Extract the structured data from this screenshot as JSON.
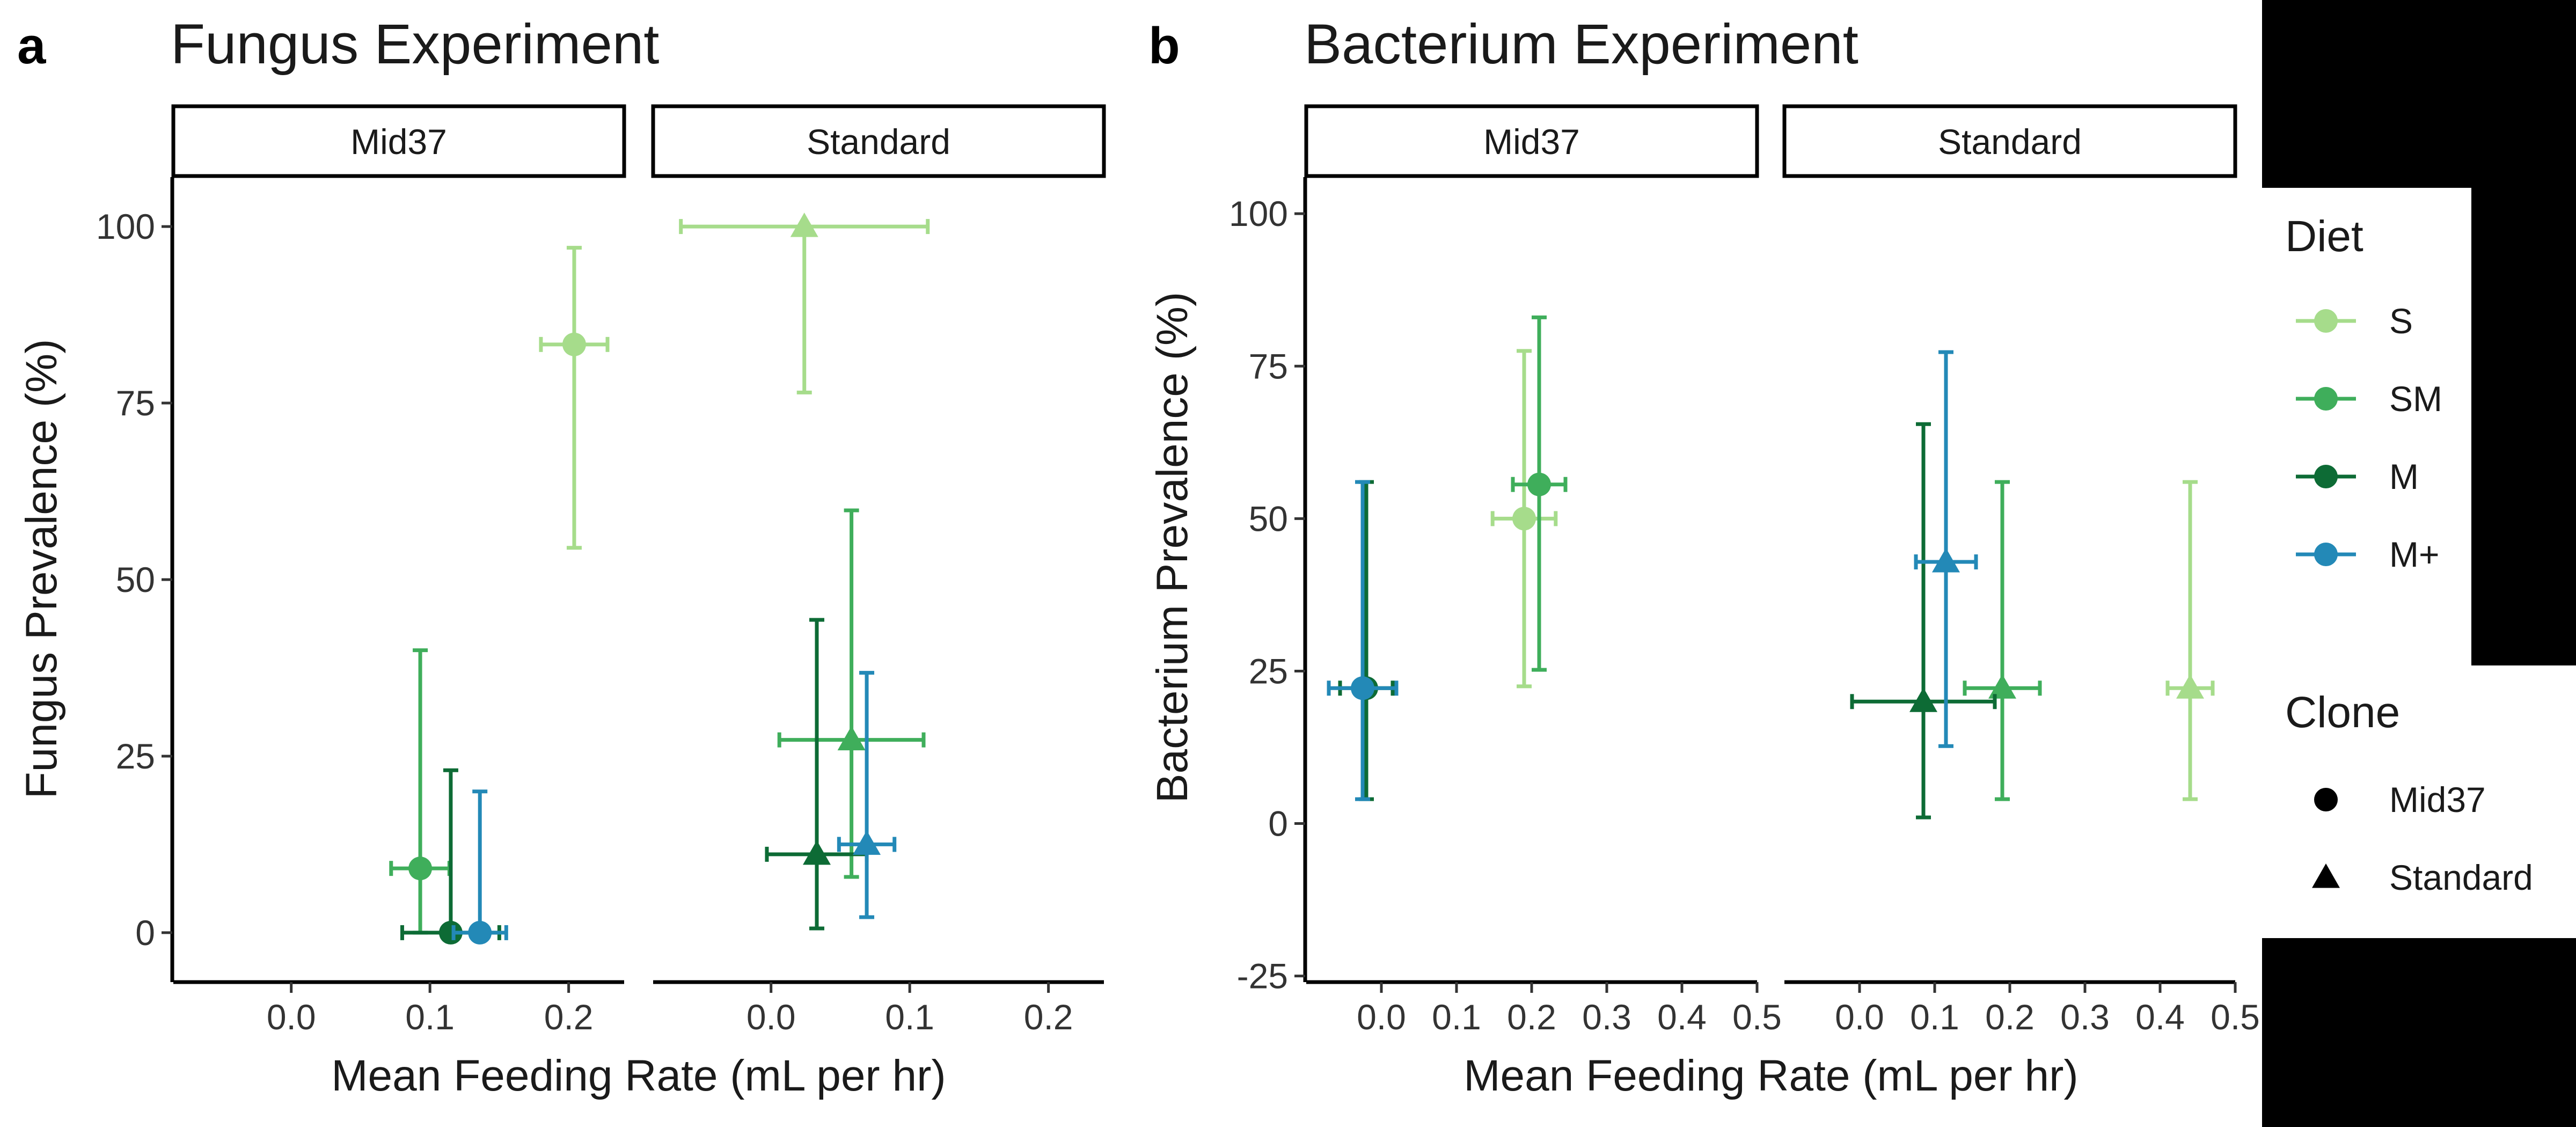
{
  "colors": {
    "S": "#a6dc8b",
    "SM": "#3fae5b",
    "M": "#0d6b35",
    "M+": "#2389b7",
    "black_block": "#000000"
  },
  "panel_a": {
    "letter": "a",
    "title": "Fungus Experiment",
    "strips": [
      "Mid37",
      "Standard"
    ],
    "ylabel": "Fungus Prevalence (%)",
    "xlabel": "Mean Feeding Rate (mL per hr)",
    "yticks": [
      "0",
      "25",
      "50",
      "75",
      "100"
    ],
    "xticks": [
      "0.0",
      "0.1",
      "0.2"
    ]
  },
  "panel_b": {
    "letter": "b",
    "title": "Bacterium Experiment",
    "strips": [
      "Mid37",
      "Standard"
    ],
    "ylabel": "Bacterium Prevalence (%)",
    "xlabel": "Mean Feeding Rate (mL per hr)",
    "yticks": [
      "-25",
      "0",
      "25",
      "50",
      "75",
      "100"
    ],
    "xticks": [
      "0.0",
      "0.1",
      "0.2",
      "0.3",
      "0.4",
      "0.5"
    ]
  },
  "legend": {
    "diet_title": "Diet",
    "diet_items": [
      "S",
      "SM",
      "M",
      "M+"
    ],
    "clone_title": "Clone",
    "clone_items": [
      {
        "label": "Mid37",
        "shape": "circle"
      },
      {
        "label": "Standard",
        "shape": "triangle"
      }
    ]
  },
  "chart_data": [
    {
      "type": "scatter",
      "title": "Fungus Experiment",
      "xlabel": "Mean Feeding Rate (mL per hr)",
      "ylabel": "Fungus Prevalence (%)",
      "xlim": [
        -0.085,
        0.24
      ],
      "ylim": [
        -7,
        107
      ],
      "facets": [
        "Mid37",
        "Standard"
      ],
      "points": [
        {
          "facet": "Mid37",
          "diet": "S",
          "clone": "Mid37",
          "x": 0.204,
          "xmin": 0.18,
          "xmax": 0.228,
          "y": 83.3,
          "ymin": 54.5,
          "ymax": 97
        },
        {
          "facet": "Mid37",
          "diet": "SM",
          "clone": "Mid37",
          "x": 0.093,
          "xmin": 0.072,
          "xmax": 0.114,
          "y": 9.1,
          "ymin": 0,
          "ymax": 40
        },
        {
          "facet": "Mid37",
          "diet": "M",
          "clone": "Mid37",
          "x": 0.115,
          "xmin": 0.08,
          "xmax": 0.15,
          "y": 0,
          "ymin": 0,
          "ymax": 23
        },
        {
          "facet": "Mid37",
          "diet": "M+",
          "clone": "Mid37",
          "x": 0.136,
          "xmin": 0.117,
          "xmax": 0.155,
          "y": 0,
          "ymin": 0,
          "ymax": 20
        },
        {
          "facet": "Standard",
          "diet": "S",
          "clone": "Standard",
          "x": 0.024,
          "xmin": -0.065,
          "xmax": 0.113,
          "y": 100,
          "ymin": 76.5,
          "ymax": 100
        },
        {
          "facet": "Standard",
          "diet": "SM",
          "clone": "Standard",
          "x": 0.058,
          "xmin": 0.006,
          "xmax": 0.11,
          "y": 27.3,
          "ymin": 7.9,
          "ymax": 59.8
        },
        {
          "facet": "Standard",
          "diet": "M",
          "clone": "Standard",
          "x": 0.033,
          "xmin": -0.003,
          "xmax": 0.069,
          "y": 11.1,
          "ymin": 0.6,
          "ymax": 44.3
        },
        {
          "facet": "Standard",
          "diet": "M+",
          "clone": "Standard",
          "x": 0.069,
          "xmin": 0.049,
          "xmax": 0.089,
          "y": 12.5,
          "ymin": 2.2,
          "ymax": 36.8
        }
      ]
    },
    {
      "type": "scatter",
      "title": "Bacterium Experiment",
      "xlabel": "Mean Feeding Rate (mL per hr)",
      "ylabel": "Bacterium Prevalence (%)",
      "xlim": [
        -0.1,
        0.5
      ],
      "ylim": [
        -26,
        106
      ],
      "facets": [
        "Mid37",
        "Standard"
      ],
      "points": [
        {
          "facet": "Mid37",
          "diet": "S",
          "clone": "Mid37",
          "x": 0.19,
          "xmin": 0.148,
          "xmax": 0.232,
          "y": 50,
          "ymin": 22.5,
          "ymax": 77.5
        },
        {
          "facet": "Mid37",
          "diet": "SM",
          "clone": "Mid37",
          "x": 0.21,
          "xmin": 0.175,
          "xmax": 0.245,
          "y": 55.6,
          "ymin": 25.2,
          "ymax": 83
        },
        {
          "facet": "Mid37",
          "diet": "M",
          "clone": "Mid37",
          "x": -0.02,
          "xmin": -0.055,
          "xmax": 0.015,
          "y": 22.2,
          "ymin": 4,
          "ymax": 56
        },
        {
          "facet": "Mid37",
          "diet": "M+",
          "clone": "Mid37",
          "x": -0.025,
          "xmin": -0.07,
          "xmax": 0.02,
          "y": 22.2,
          "ymin": 4,
          "ymax": 56
        },
        {
          "facet": "Standard",
          "diet": "S",
          "clone": "Standard",
          "x": 0.44,
          "xmin": 0.41,
          "xmax": 0.47,
          "y": 22.2,
          "ymin": 4,
          "ymax": 56
        },
        {
          "facet": "Standard",
          "diet": "SM",
          "clone": "Standard",
          "x": 0.19,
          "xmin": 0.14,
          "xmax": 0.24,
          "y": 22.2,
          "ymin": 4,
          "ymax": 56
        },
        {
          "facet": "Standard",
          "diet": "M",
          "clone": "Standard",
          "x": 0.085,
          "xmin": -0.01,
          "xmax": 0.18,
          "y": 20,
          "ymin": 1,
          "ymax": 65.5
        },
        {
          "facet": "Standard",
          "diet": "M+",
          "clone": "Standard",
          "x": 0.115,
          "xmin": 0.075,
          "xmax": 0.155,
          "y": 42.9,
          "ymin": 12.7,
          "ymax": 77.3
        }
      ]
    }
  ]
}
